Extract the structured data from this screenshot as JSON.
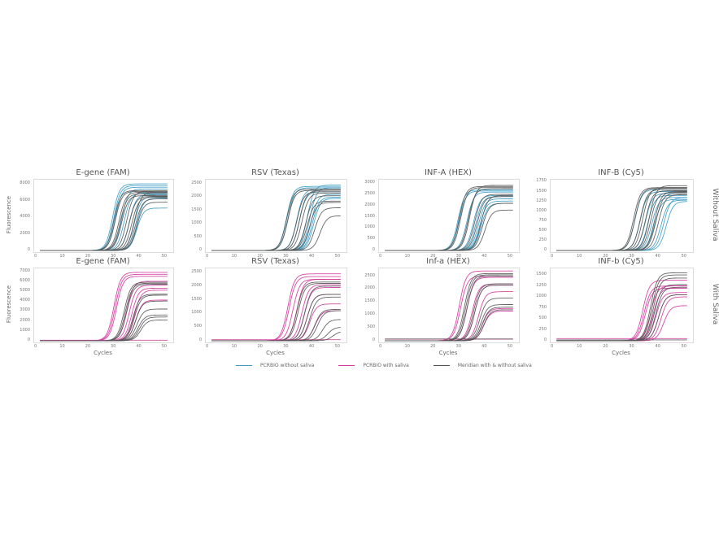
{
  "chart_data": {
    "type": "line",
    "layout": "2x4 grid of qPCR amplification plots",
    "xlabel": "Cycles",
    "ylabel": "Fluorescence",
    "xlim": [
      0,
      52
    ],
    "xticks": [
      0,
      10,
      20,
      30,
      40,
      50
    ],
    "row_labels": [
      "Without Saliva",
      "With Saliva"
    ],
    "legend": [
      {
        "name": "PCRBIO without saliva",
        "color": "#3a9cc4"
      },
      {
        "name": "PCRBIO with saliva",
        "color": "#d4369c"
      },
      {
        "name": "Meridian with & without saliva",
        "color": "#555555"
      }
    ],
    "panels": [
      {
        "row": 0,
        "col": 0,
        "title": "E-gene (FAM)",
        "ylim": [
          0,
          8500
        ],
        "yticks": [
          0,
          2000,
          4000,
          6000,
          8000
        ],
        "series": [
          {
            "color": "#3a9cc4",
            "curves": [
              [
                29.5,
                8000
              ],
              [
                30,
                7800
              ],
              [
                30.5,
                7600
              ],
              [
                33,
                7400
              ],
              [
                34,
                6900
              ],
              [
                36,
                6700
              ],
              [
                38,
                6500
              ],
              [
                39,
                6300
              ],
              [
                39,
                5100
              ]
            ]
          },
          {
            "color": "#555555",
            "curves": [
              [
                30,
                7200
              ],
              [
                30.5,
                7100
              ],
              [
                32,
                7000
              ],
              [
                32.5,
                6800
              ],
              [
                33,
                6600
              ],
              [
                35,
                7100
              ],
              [
                36,
                6500
              ],
              [
                37,
                6400
              ],
              [
                38,
                7000
              ],
              [
                38.5,
                6200
              ],
              [
                39,
                5800
              ]
            ]
          }
        ]
      },
      {
        "row": 0,
        "col": 1,
        "title": "RSV (Texas)",
        "ylim": [
          0,
          2650
        ],
        "yticks": [
          0,
          500,
          1000,
          1500,
          2000,
          2500
        ],
        "series": [
          {
            "color": "#3a9cc4",
            "curves": [
              [
                30,
                2400
              ],
              [
                30.5,
                2350
              ],
              [
                34,
                2300
              ],
              [
                35,
                2200
              ],
              [
                38,
                2450
              ],
              [
                39,
                2350
              ],
              [
                39.5,
                2100
              ],
              [
                40,
                2000
              ],
              [
                40.5,
                1950
              ]
            ]
          },
          {
            "color": "#555555",
            "curves": [
              [
                30,
                2300
              ],
              [
                30.5,
                2250
              ],
              [
                34,
                2200
              ],
              [
                35,
                2250
              ],
              [
                36,
                2150
              ],
              [
                37.5,
                2050
              ],
              [
                38,
                1850
              ],
              [
                39,
                1800
              ],
              [
                41,
                1600
              ],
              [
                43,
                1300
              ]
            ]
          }
        ]
      },
      {
        "row": 0,
        "col": 2,
        "title": "INF-A (HEX)",
        "ylim": [
          0,
          3150
        ],
        "yticks": [
          0,
          500,
          1000,
          1500,
          2000,
          2500,
          3000
        ],
        "series": [
          {
            "color": "#3a9cc4",
            "curves": [
              [
                29.5,
                2700
              ],
              [
                30,
                2650
              ],
              [
                33,
                2600
              ],
              [
                35.5,
                2450
              ],
              [
                36.5,
                2400
              ],
              [
                37.5,
                2300
              ],
              [
                38,
                2200
              ],
              [
                38.5,
                2100
              ]
            ]
          },
          {
            "color": "#555555",
            "curves": [
              [
                30,
                2850
              ],
              [
                30.5,
                2800
              ],
              [
                33.5,
                2750
              ],
              [
                34,
                2900
              ],
              [
                36,
                2500
              ],
              [
                37,
                2400
              ],
              [
                38.5,
                2450
              ],
              [
                39,
                2100
              ],
              [
                40,
                1800
              ]
            ]
          }
        ]
      },
      {
        "row": 0,
        "col": 3,
        "title": "INF-B (Cy5)",
        "ylim": [
          0,
          1800
        ],
        "yticks": [
          0,
          250,
          500,
          750,
          1000,
          1250,
          1500,
          1750
        ],
        "series": [
          {
            "color": "#3a9cc4",
            "curves": [
              [
                31,
                1550
              ],
              [
                33,
                1500
              ],
              [
                35,
                1450
              ],
              [
                36,
                1400
              ],
              [
                37.5,
                1350
              ],
              [
                38.5,
                1300
              ],
              [
                41,
                1280
              ],
              [
                42,
                1350
              ],
              [
                43,
                1250
              ]
            ]
          },
          {
            "color": "#555555",
            "curves": [
              [
                30.5,
                1600
              ],
              [
                31,
                1580
              ],
              [
                33,
                1550
              ],
              [
                34,
                1600
              ],
              [
                35,
                1520
              ],
              [
                36.5,
                1650
              ],
              [
                37,
                1480
              ],
              [
                38.5,
                1500
              ],
              [
                39,
                1450
              ],
              [
                40,
                1420
              ]
            ]
          }
        ]
      },
      {
        "row": 1,
        "col": 0,
        "title": "E-gene (FAM)",
        "ylim": [
          0,
          7300
        ],
        "yticks": [
          0,
          1000,
          2000,
          3000,
          4000,
          5000,
          6000,
          7000
        ],
        "series": [
          {
            "color": "#d4369c",
            "curves": [
              [
                30,
                6900
              ],
              [
                30.5,
                6700
              ],
              [
                31,
                6500
              ],
              [
                35,
                6000
              ],
              [
                36,
                5600
              ],
              [
                37,
                5300
              ],
              [
                38,
                5100
              ],
              [
                38.5,
                4100
              ],
              [
                0,
                60
              ]
            ]
          },
          {
            "color": "#555555",
            "curves": [
              [
                34,
                5900
              ],
              [
                34.5,
                5800
              ],
              [
                35,
                5700
              ],
              [
                37.5,
                4700
              ],
              [
                38,
                4600
              ],
              [
                38.5,
                4000
              ],
              [
                39,
                3200
              ],
              [
                39.5,
                2600
              ],
              [
                40,
                2400
              ],
              [
                40.5,
                2100
              ]
            ]
          }
        ]
      },
      {
        "row": 1,
        "col": 1,
        "title": "RSV (Texas)",
        "ylim": [
          0,
          2650
        ],
        "yticks": [
          0,
          500,
          1000,
          1500,
          2000,
          2500
        ],
        "series": [
          {
            "color": "#d4369c",
            "curves": [
              [
                30.5,
                2450
              ],
              [
                31,
                2350
              ],
              [
                32.5,
                2250
              ],
              [
                34,
                2250
              ],
              [
                36,
                2050
              ],
              [
                37,
                1950
              ],
              [
                38,
                1700
              ],
              [
                39,
                1350
              ],
              [
                41,
                1100
              ],
              [
                0,
                40
              ]
            ]
          },
          {
            "color": "#555555",
            "curves": [
              [
                34,
                2150
              ],
              [
                34.5,
                2100
              ],
              [
                37,
                2000
              ],
              [
                38,
                1700
              ],
              [
                39,
                1600
              ],
              [
                41,
                1150
              ],
              [
                42,
                1100
              ],
              [
                44,
                780
              ],
              [
                46,
                500
              ],
              [
                48,
                350
              ]
            ]
          }
        ]
      },
      {
        "row": 1,
        "col": 2,
        "title": "Inf-a (HEX)",
        "ylim": [
          0,
          2800
        ],
        "yticks": [
          0,
          500,
          1000,
          1500,
          2000,
          2500
        ],
        "series": [
          {
            "color": "#d4369c",
            "curves": [
              [
                30,
                2700
              ],
              [
                30.5,
                2500
              ],
              [
                33,
                2450
              ],
              [
                35,
                2200
              ],
              [
                36,
                2150
              ],
              [
                37.5,
                1900
              ],
              [
                39,
                1250
              ],
              [
                39.5,
                1150
              ],
              [
                0,
                60
              ]
            ]
          },
          {
            "color": "#555555",
            "curves": [
              [
                32,
                2600
              ],
              [
                32.5,
                2550
              ],
              [
                33,
                2500
              ],
              [
                35.5,
                2200
              ],
              [
                36,
                2150
              ],
              [
                38,
                1650
              ],
              [
                38.5,
                1400
              ],
              [
                39,
                1300
              ],
              [
                39.5,
                1200
              ],
              [
                0,
                70
              ]
            ]
          }
        ]
      },
      {
        "row": 1,
        "col": 3,
        "title": "INF-b (Cy5)",
        "ylim": [
          0,
          1650
        ],
        "yticks": [
          0,
          250,
          500,
          750,
          1000,
          1250,
          1500
        ],
        "series": [
          {
            "color": "#d4369c",
            "curves": [
              [
                34,
                1380
              ],
              [
                34.5,
                1250
              ],
              [
                35,
                1200
              ],
              [
                37,
                1250
              ],
              [
                38,
                1200
              ],
              [
                39,
                1100
              ],
              [
                40,
                1050
              ],
              [
                41,
                1000
              ],
              [
                42,
                800
              ],
              [
                0,
                50
              ]
            ]
          },
          {
            "color": "#555555",
            "curves": [
              [
                37,
                1550
              ],
              [
                37.5,
                1500
              ],
              [
                38,
                1430
              ],
              [
                38.5,
                1280
              ],
              [
                39,
                1220
              ],
              [
                40,
                1050
              ],
              [
                0,
                20
              ]
            ]
          }
        ]
      }
    ]
  }
}
